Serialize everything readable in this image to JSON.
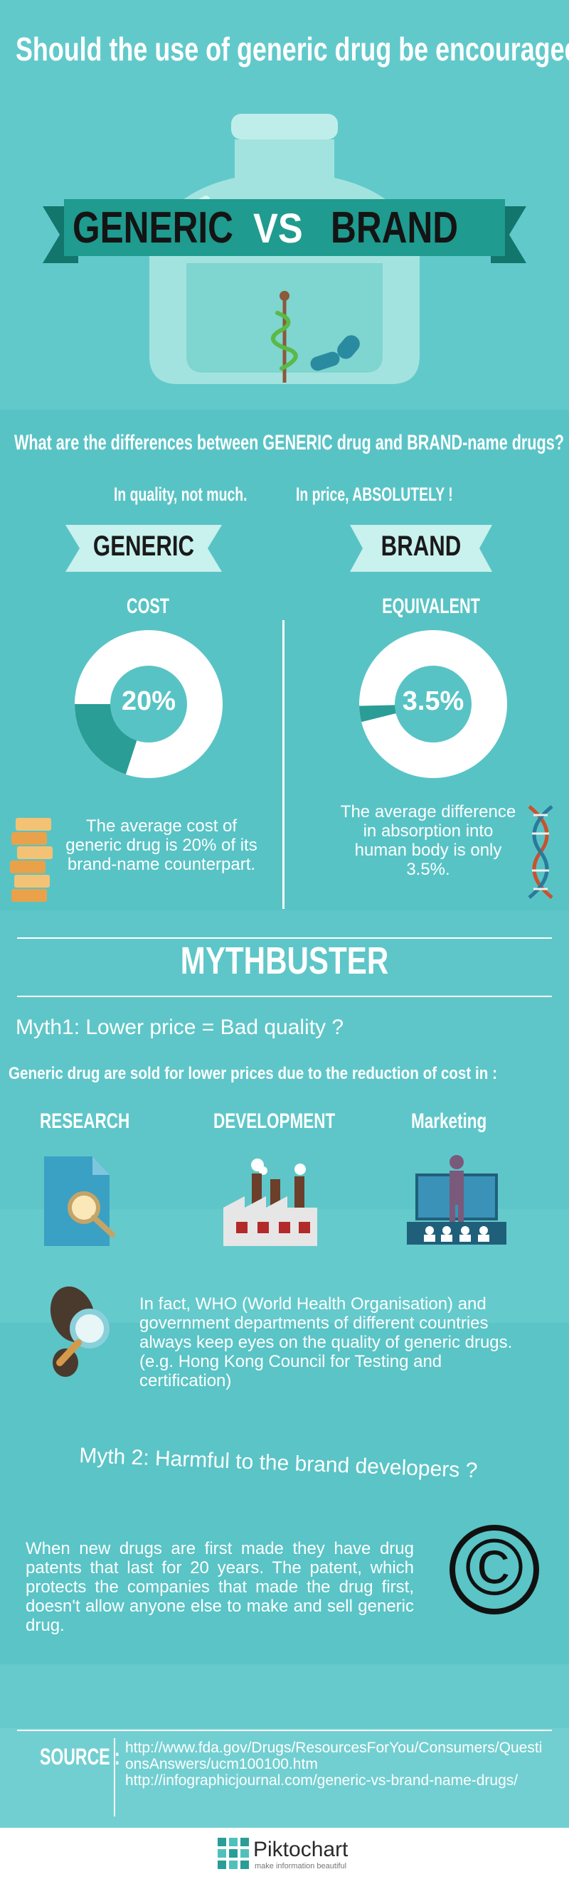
{
  "header": {
    "title": "Should the use of generic drug be encouraged?",
    "banner_left": "GENERIC",
    "banner_vs": "VS",
    "banner_right": "BRAND"
  },
  "differences": {
    "question": "What are the differences between GENERIC drug and BRAND-name drugs?",
    "quality": "In quality, not much.",
    "price": "In price, ABSOLUTELY !",
    "generic": {
      "label": "GENERIC",
      "subhead": "COST",
      "percent": "20%",
      "percent_value": 20,
      "text": "The average cost of generic drug is 20% of its brand-name counterpart."
    },
    "brand": {
      "label": "BRAND",
      "subhead": "EQUIVALENT",
      "percent": "3.5%",
      "percent_value": 3.5,
      "text": "The average difference in absorption into human body is only 3.5%."
    }
  },
  "mythbuster": {
    "title": "MYTHBUSTER",
    "myth1": "Myth1: Lower price = Bad quality ?",
    "reduction": "Generic drug are sold for lower prices due to the reduction of cost in :",
    "categories": [
      "RESEARCH",
      "DEVELOPMENT",
      "Marketing"
    ],
    "who_text": "In fact, WHO (World Health Organisation) and government departments of different countries always keep eyes on the quality of generic drugs. (e.g. Hong Kong Council for Testing and certification)",
    "myth2": "Myth 2: Harmful to the brand developers ?",
    "patent_text": "When new drugs are first made they have drug patents that last for 20 years. The patent, which protects the companies that made the drug first, doesn't allow anyone else to make and sell generic drug.",
    "copyright_symbol": "©"
  },
  "source": {
    "label": "SOURCE :",
    "link1": "http://www.fda.gov/Drugs/ResourcesForYou/Consumers/QuestionsAnswers/ucm100100.htm",
    "link2": "http://infographicjournal.com/generic-vs-brand-name-drugs/"
  },
  "footer": {
    "brand": "Piktochart",
    "tagline": "make information beautiful"
  },
  "colors": {
    "background": "#5cc7c9",
    "ribbon": "#1f9b8f",
    "ribbon_dark": "#13766d",
    "donut_accent": "#2a9d97",
    "banner_light": "#c9f1ee"
  }
}
